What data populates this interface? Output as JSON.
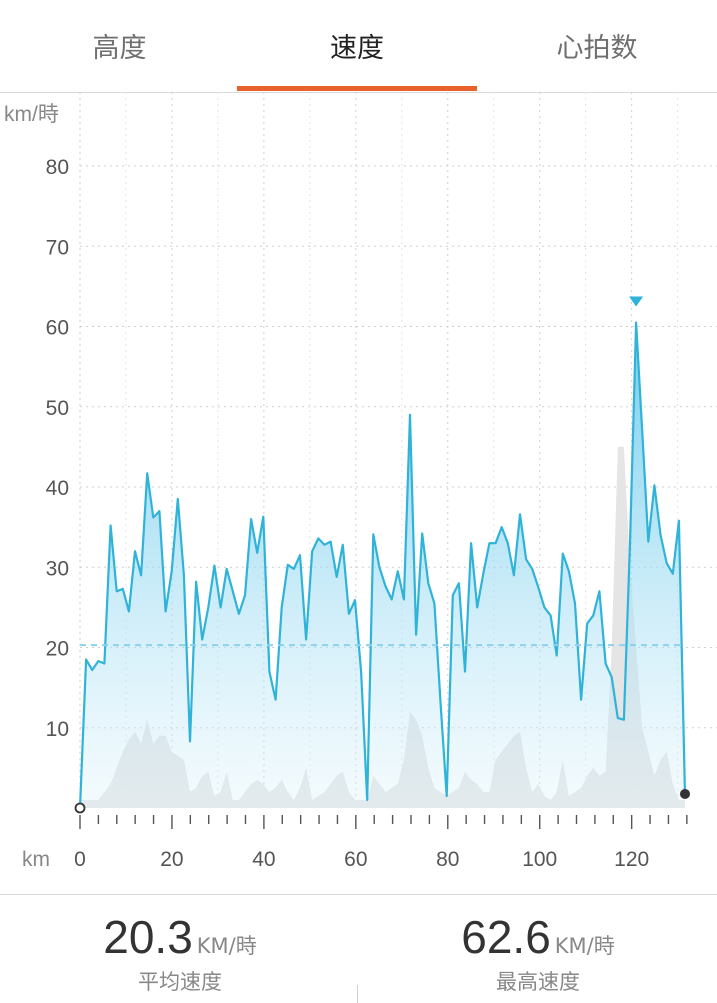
{
  "tabs": [
    {
      "label": "高度",
      "active": false
    },
    {
      "label": "速度",
      "active": true
    },
    {
      "label": "心拍数",
      "active": false
    }
  ],
  "accent_color": "#e8632c",
  "speed_line_color": "#2fb3d9",
  "chart_data": {
    "type": "area",
    "ylabel": "km/時",
    "xlabel": "km",
    "ylim": [
      0,
      85
    ],
    "xlim": [
      0,
      133
    ],
    "y_ticks": [
      10,
      20,
      30,
      40,
      50,
      60,
      70,
      80
    ],
    "x_ticks": [
      0,
      20,
      40,
      60,
      80,
      100,
      120
    ],
    "grid": true,
    "average_line": 20.3,
    "max_marker": {
      "x": 122,
      "y": 60.5
    },
    "series": [
      {
        "values": [
          [
            0,
            0
          ],
          [
            1,
            18.5
          ],
          [
            2,
            17.2
          ],
          [
            3,
            18.3
          ],
          [
            4,
            18
          ],
          [
            5,
            35.2
          ],
          [
            6,
            27
          ],
          [
            7,
            27.3
          ],
          [
            8,
            24.5
          ],
          [
            9,
            32
          ],
          [
            10,
            29
          ],
          [
            11,
            41.7
          ],
          [
            12,
            36.2
          ],
          [
            13,
            37
          ],
          [
            14,
            24.5
          ],
          [
            15,
            29.5
          ],
          [
            16,
            38.5
          ],
          [
            17,
            29
          ],
          [
            18,
            8.3
          ],
          [
            19,
            28.2
          ],
          [
            20,
            21
          ],
          [
            21,
            25
          ],
          [
            22,
            30.2
          ],
          [
            23,
            25
          ],
          [
            24,
            29.8
          ],
          [
            25,
            27
          ],
          [
            26,
            24.2
          ],
          [
            27,
            26.5
          ],
          [
            28,
            36
          ],
          [
            29,
            31.8
          ],
          [
            30,
            36.3
          ],
          [
            31,
            17
          ],
          [
            32,
            13.5
          ],
          [
            33,
            25
          ],
          [
            34,
            30.3
          ],
          [
            35,
            29.8
          ],
          [
            36,
            31.5
          ],
          [
            37,
            21
          ],
          [
            38,
            32
          ],
          [
            39,
            33.6
          ],
          [
            40,
            32.8
          ],
          [
            41,
            33.2
          ],
          [
            42,
            28.8
          ],
          [
            43,
            32.8
          ],
          [
            44,
            24.2
          ],
          [
            45,
            25.9
          ],
          [
            46,
            17
          ],
          [
            47,
            1
          ],
          [
            48,
            34.1
          ],
          [
            49,
            30
          ],
          [
            50,
            27.6
          ],
          [
            51,
            26
          ],
          [
            52,
            29.5
          ],
          [
            53,
            26
          ],
          [
            54,
            49
          ],
          [
            55,
            21.6
          ],
          [
            56,
            34.2
          ],
          [
            57,
            28
          ],
          [
            58,
            25.5
          ],
          [
            59,
            13
          ],
          [
            60,
            1.5
          ],
          [
            61,
            26.5
          ],
          [
            62,
            28
          ],
          [
            63,
            17
          ],
          [
            64,
            33
          ],
          [
            65,
            25
          ],
          [
            66,
            29.2
          ],
          [
            67,
            33
          ],
          [
            68,
            33
          ],
          [
            69,
            35
          ],
          [
            70,
            33
          ],
          [
            71,
            29
          ],
          [
            72,
            36.6
          ],
          [
            73,
            31
          ],
          [
            74,
            29.8
          ],
          [
            75,
            27.5
          ],
          [
            76,
            25
          ],
          [
            77,
            24
          ],
          [
            78,
            19
          ],
          [
            79,
            31.7
          ],
          [
            80,
            29.5
          ],
          [
            81,
            25.5
          ],
          [
            82,
            13.5
          ],
          [
            83,
            23
          ],
          [
            84,
            24
          ],
          [
            85,
            27
          ],
          [
            86,
            18
          ],
          [
            87,
            16.3
          ],
          [
            88,
            11.2
          ],
          [
            89,
            11
          ],
          [
            90,
            33
          ],
          [
            91,
            60.5
          ],
          [
            92,
            47
          ],
          [
            93,
            33.2
          ],
          [
            94,
            40.2
          ],
          [
            95,
            34
          ],
          [
            96,
            30.5
          ],
          [
            97,
            29.2
          ],
          [
            98,
            35.8
          ],
          [
            99,
            1.5
          ]
        ]
      }
    ],
    "background_series": {
      "values": [
        [
          0,
          1
        ],
        [
          1,
          1
        ],
        [
          2,
          1
        ],
        [
          3,
          1
        ],
        [
          4,
          2
        ],
        [
          5,
          3
        ],
        [
          6,
          5
        ],
        [
          7,
          7
        ],
        [
          8,
          8.5
        ],
        [
          9,
          9.5
        ],
        [
          10,
          8
        ],
        [
          11,
          11
        ],
        [
          12,
          8
        ],
        [
          13,
          9
        ],
        [
          14,
          9
        ],
        [
          15,
          7
        ],
        [
          16,
          6.5
        ],
        [
          17,
          6
        ],
        [
          18,
          2
        ],
        [
          19,
          2.5
        ],
        [
          20,
          4
        ],
        [
          21,
          4.5
        ],
        [
          22,
          1.5
        ],
        [
          23,
          2
        ],
        [
          24,
          4.5
        ],
        [
          25,
          1
        ],
        [
          26,
          1
        ],
        [
          27,
          2
        ],
        [
          28,
          3
        ],
        [
          29,
          3.5
        ],
        [
          30,
          3
        ],
        [
          31,
          2
        ],
        [
          32,
          2.5
        ],
        [
          33,
          3.5
        ],
        [
          34,
          2
        ],
        [
          35,
          1
        ],
        [
          36,
          2.5
        ],
        [
          37,
          5
        ],
        [
          38,
          1
        ],
        [
          39,
          1.5
        ],
        [
          40,
          2
        ],
        [
          41,
          3
        ],
        [
          42,
          4
        ],
        [
          43,
          4.5
        ],
        [
          44,
          2
        ],
        [
          45,
          1
        ],
        [
          46,
          1
        ],
        [
          47,
          1
        ],
        [
          48,
          4
        ],
        [
          49,
          3
        ],
        [
          50,
          2
        ],
        [
          51,
          2.5
        ],
        [
          52,
          3
        ],
        [
          53,
          6
        ],
        [
          54,
          12
        ],
        [
          55,
          11
        ],
        [
          56,
          9
        ],
        [
          57,
          5
        ],
        [
          58,
          2.5
        ],
        [
          59,
          2
        ],
        [
          60,
          1.5
        ],
        [
          61,
          2
        ],
        [
          62,
          2.5
        ],
        [
          63,
          4.5
        ],
        [
          64,
          3.5
        ],
        [
          65,
          3
        ],
        [
          66,
          2
        ],
        [
          67,
          2
        ],
        [
          68,
          6
        ],
        [
          69,
          7
        ],
        [
          70,
          8
        ],
        [
          71,
          9
        ],
        [
          72,
          9.5
        ],
        [
          73,
          5
        ],
        [
          74,
          2
        ],
        [
          75,
          3
        ],
        [
          76,
          1.5
        ],
        [
          77,
          1
        ],
        [
          78,
          2
        ],
        [
          79,
          6
        ],
        [
          80,
          1.5
        ],
        [
          81,
          2
        ],
        [
          82,
          2.5
        ],
        [
          83,
          4
        ],
        [
          84,
          5
        ],
        [
          85,
          4
        ],
        [
          86,
          4.5
        ],
        [
          87,
          20
        ],
        [
          88,
          45
        ],
        [
          89,
          45
        ],
        [
          90,
          30
        ],
        [
          91,
          20
        ],
        [
          92,
          10
        ],
        [
          93,
          7
        ],
        [
          94,
          4
        ],
        [
          95,
          6
        ],
        [
          96,
          7
        ],
        [
          97,
          3
        ],
        [
          98,
          1
        ],
        [
          99,
          1
        ]
      ]
    }
  },
  "stats": {
    "average": {
      "value": "20.3",
      "unit": "KM/時",
      "label": "平均速度"
    },
    "max": {
      "value": "62.6",
      "unit": "KM/時",
      "label": "最高速度"
    }
  }
}
